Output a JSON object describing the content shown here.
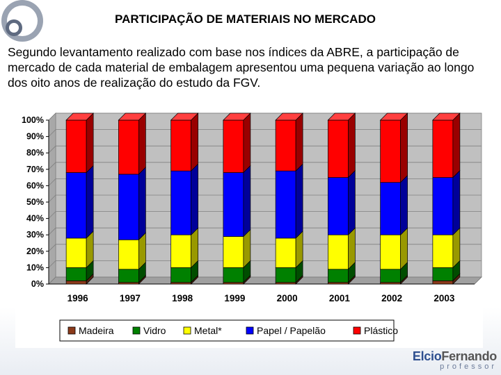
{
  "slide": {
    "title": "PARTICIPAÇÃO DE MATERIAIS NO MERCADO",
    "intro": "Segundo levantamento realizado com base nos índices da ABRE, a participação de mercado de cada material de embalagem apresentou uma pequena variação ao longo dos oito anos de realização do estudo da FGV."
  },
  "brand": {
    "name_first": "Elcio",
    "name_last": "Fernando",
    "subtitle": "professor"
  },
  "chart_data": {
    "type": "bar",
    "stacked": true,
    "percent": true,
    "categories": [
      "1996",
      "1997",
      "1998",
      "1999",
      "2000",
      "2001",
      "2002",
      "2003"
    ],
    "y_ticks": [
      "0%",
      "10%",
      "20%",
      "30%",
      "40%",
      "50%",
      "60%",
      "70%",
      "80%",
      "90%",
      "100%"
    ],
    "ylim": [
      0,
      100
    ],
    "legend_position": "bottom",
    "series": [
      {
        "name": "Madeira",
        "color": "#8b3a1a",
        "values": [
          2,
          1,
          1,
          1,
          1,
          1,
          1,
          2
        ]
      },
      {
        "name": "Vidro",
        "color": "#008000",
        "values": [
          8,
          8,
          9,
          9,
          9,
          8,
          8,
          8
        ]
      },
      {
        "name": "Metal*",
        "color": "#ffff00",
        "values": [
          18,
          18,
          20,
          19,
          18,
          21,
          21,
          20
        ]
      },
      {
        "name": "Papel / Papelão",
        "color": "#0000ff",
        "values": [
          40,
          40,
          39,
          39,
          41,
          35,
          32,
          35
        ]
      },
      {
        "name": "Plástico",
        "color": "#ff0000",
        "values": [
          32,
          33,
          31,
          32,
          31,
          35,
          38,
          35
        ]
      }
    ]
  }
}
